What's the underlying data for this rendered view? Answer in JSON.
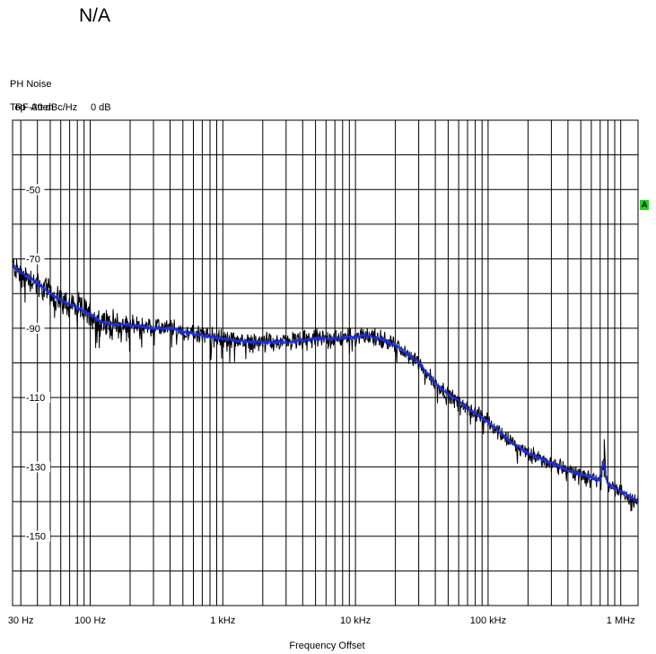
{
  "page_title": "N/A",
  "header": {
    "line1": "PH Noise",
    "line2_label": "RF Atten",
    "line2_value": "0 dB",
    "line3": "Top -30 dBc/Hz"
  },
  "trace_badge": "A",
  "colors": {
    "raw_trace": "#000000",
    "avg_trace": "#1f2fd8",
    "grid": "#000000",
    "badge": "#1fd21f"
  },
  "chart_data": {
    "type": "line",
    "title": "N/A",
    "xlabel": "Frequency Offset",
    "ylabel": "",
    "x_scale": "log",
    "xlim": [
      26,
      1350000
    ],
    "ylim": [
      -170,
      -30
    ],
    "x_ticks": [
      {
        "value": 30,
        "label": "30 Hz"
      },
      {
        "value": 100,
        "label": "100 Hz"
      },
      {
        "value": 1000,
        "label": "1 kHz"
      },
      {
        "value": 10000,
        "label": "10 kHz"
      },
      {
        "value": 100000,
        "label": "100 kHz"
      },
      {
        "value": 1000000,
        "label": "1 MHz"
      }
    ],
    "y_ticks": [
      {
        "value": -50,
        "label": "-50"
      },
      {
        "value": -70,
        "label": "-70"
      },
      {
        "value": -90,
        "label": "-90"
      },
      {
        "value": -110,
        "label": "-110"
      },
      {
        "value": -130,
        "label": "-130"
      },
      {
        "value": -150,
        "label": "-150"
      }
    ],
    "grid": true,
    "series": [
      {
        "color": "#1f2fd8",
        "x": [
          26,
          30,
          40,
          50,
          60,
          70,
          80,
          100,
          120,
          150,
          200,
          300,
          400,
          500,
          700,
          1000,
          1500,
          2000,
          3000,
          4000,
          5000,
          7000,
          10000,
          12000,
          15000,
          20000,
          30000,
          40000,
          50000,
          60000,
          70000,
          100000,
          150000,
          200000,
          300000,
          400000,
          600000,
          700000,
          740000,
          770000,
          800000,
          1000000,
          1350000
        ],
        "values": [
          -72,
          -74,
          -77,
          -80,
          -82,
          -83,
          -84,
          -86,
          -88,
          -89,
          -89,
          -90,
          -90,
          -91,
          -92,
          -93,
          -94,
          -94,
          -94,
          -93.5,
          -93,
          -93,
          -92.5,
          -92,
          -93,
          -95,
          -100,
          -106,
          -109,
          -111,
          -113,
          -117,
          -123,
          -126,
          -129,
          -131,
          -133,
          -134,
          -128,
          -133,
          -135,
          -137,
          -140
        ]
      }
    ]
  }
}
